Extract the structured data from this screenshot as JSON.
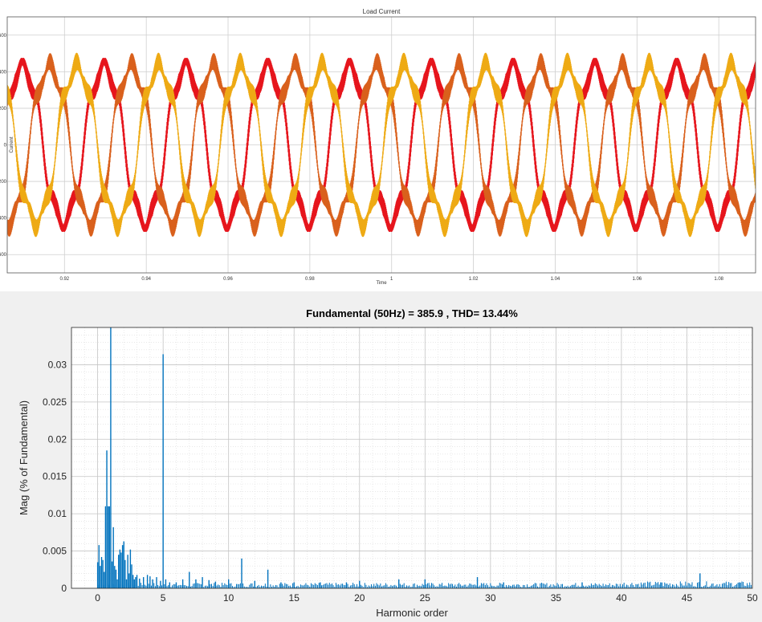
{
  "chart_data": [
    {
      "type": "line",
      "title": "Load Current",
      "xlabel": "Time",
      "ylabel": "Current",
      "xlim": [
        0.906,
        1.089
      ],
      "ylim": [
        -700,
        700
      ],
      "x_ticks": [
        "0.92",
        "0.94",
        "0.96",
        "0.98",
        "1",
        "1.02",
        "1.04",
        "1.06",
        "1.08"
      ],
      "y_ticks": [
        "-600",
        "-400",
        "-200",
        "0",
        "200",
        "400",
        "600"
      ],
      "grid": true,
      "legend": "none",
      "frequency_hz": 50,
      "peak_amplitude": 470,
      "ripple_amplitude": 85,
      "series": [
        {
          "color": "#e6151c",
          "phase_deg": -85
        },
        {
          "color": "#d9601c",
          "phase_deg": 155
        },
        {
          "color": "#eeaa14",
          "phase_deg": 35
        }
      ]
    },
    {
      "type": "bar",
      "title": "Fundamental (50Hz) = 385.9 , THD= 13.44%",
      "xlabel": "Harmonic order",
      "ylabel": "Mag (% of Fundamental)",
      "xlim": [
        -2,
        50
      ],
      "ylim": [
        0,
        0.035
      ],
      "x_ticks": [
        "0",
        "5",
        "10",
        "15",
        "20",
        "25",
        "30",
        "35",
        "40",
        "45",
        "50"
      ],
      "y_ticks": [
        "0",
        "0.005",
        "0.01",
        "0.015",
        "0.02",
        "0.025",
        "0.03"
      ],
      "grid": true,
      "bar_color": "#0072bd",
      "harmonics": [
        0,
        0.1,
        0.2,
        0.3,
        0.4,
        0.5,
        0.6,
        0.7,
        0.8,
        0.9,
        1.0,
        1.1,
        1.2,
        1.3,
        1.4,
        1.5,
        1.6,
        1.7,
        1.8,
        1.9,
        2.0,
        2.1,
        2.2,
        2.3,
        2.4,
        2.5,
        2.6,
        2.7,
        2.8,
        2.9,
        3.0,
        3.2,
        3.5,
        3.8,
        4.0,
        4.2,
        4.5,
        4.8,
        5.0,
        5.2,
        5.5,
        6.0,
        6.5,
        7.0,
        7.5,
        8.0,
        8.5,
        9.0,
        10.0,
        11.0,
        12.0,
        13.0,
        14.0,
        15.0,
        17.0,
        19.0,
        20.0,
        23.0,
        25.0,
        29.0,
        31.0,
        37.0,
        43.0,
        46.0,
        49.0
      ],
      "values": [
        0.0035,
        0.0058,
        0.003,
        0.0042,
        0.0038,
        0.0022,
        0.011,
        0.0185,
        0.011,
        0.011,
        0.035,
        0.0036,
        0.0082,
        0.003,
        0.0025,
        0.0012,
        0.0045,
        0.0052,
        0.0048,
        0.0058,
        0.0063,
        0.0038,
        0.0012,
        0.0045,
        0.002,
        0.0052,
        0.0032,
        0.0018,
        0.0012,
        0.0015,
        0.0018,
        0.0013,
        0.0015,
        0.0018,
        0.0016,
        0.0012,
        0.0015,
        0.001,
        0.0314,
        0.0012,
        0.0008,
        0.0008,
        0.0012,
        0.0022,
        0.0012,
        0.0015,
        0.0011,
        0.0009,
        0.0012,
        0.004,
        0.001,
        0.0025,
        0.0008,
        0.0008,
        0.0008,
        0.0008,
        0.001,
        0.0012,
        0.0012,
        0.0015,
        0.0008,
        0.0008,
        0.0008,
        0.002,
        0.0008
      ],
      "noise_floor": 0.0005
    }
  ]
}
